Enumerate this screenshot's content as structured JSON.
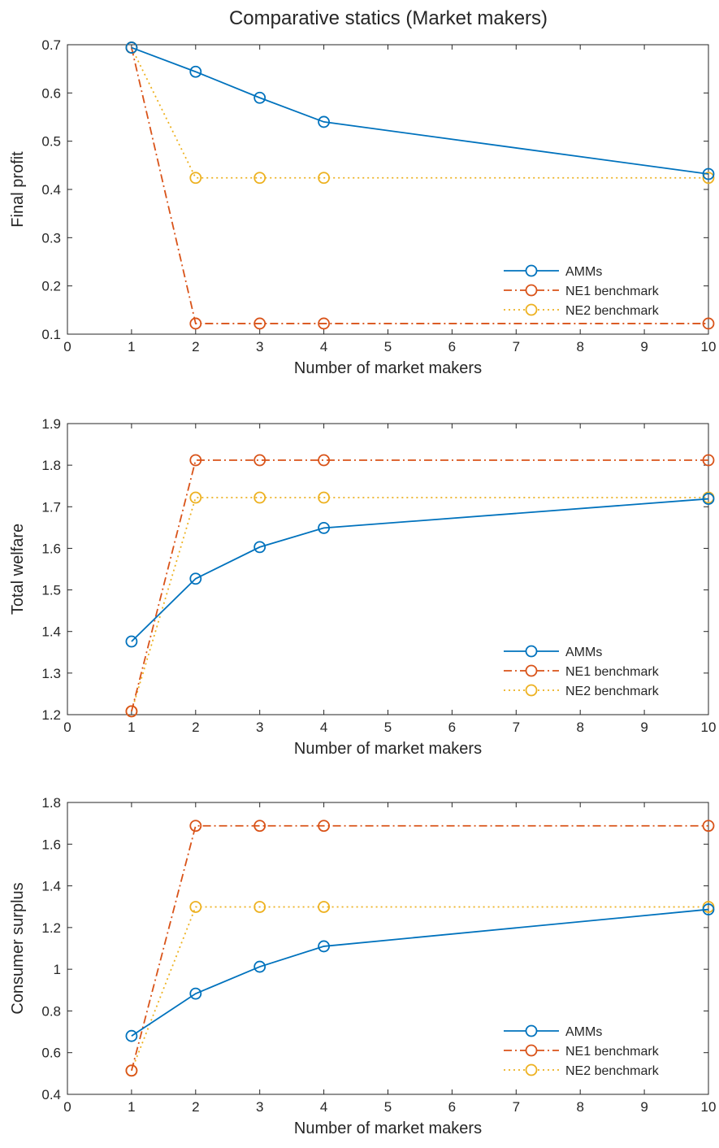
{
  "figure": {
    "title": "Comparative statics (Market makers)"
  },
  "colors": {
    "amm": "#0072BD",
    "ne1": "#D95319",
    "ne2": "#EDB120",
    "axis": "#262626"
  },
  "chart_data": [
    {
      "type": "line",
      "ylabel": "Final profit",
      "xlabel": "Number of market makers",
      "xlim": [
        0,
        10
      ],
      "ylim": [
        0.1,
        0.7
      ],
      "xticks": [
        0,
        1,
        2,
        3,
        4,
        5,
        6,
        7,
        8,
        9,
        10
      ],
      "yticks": [
        0.1,
        0.2,
        0.3,
        0.4,
        0.5,
        0.6,
        0.7
      ],
      "ytick_labels": [
        "0.1",
        "0.2",
        "0.3",
        "0.4",
        "0.5",
        "0.6",
        "0.7"
      ],
      "legend_position": "bottom-right",
      "x": [
        1,
        2,
        3,
        4,
        10
      ],
      "series": [
        {
          "name": "AMMs",
          "key": "amm",
          "style": "solid",
          "values": [
            0.694,
            0.644,
            0.59,
            0.54,
            0.432
          ]
        },
        {
          "name": "NE1 benchmark",
          "key": "ne1",
          "style": "dashdot",
          "values": [
            0.694,
            0.122,
            0.122,
            0.122,
            0.122
          ]
        },
        {
          "name": "NE2 benchmark",
          "key": "ne2",
          "style": "dotted",
          "values": [
            0.694,
            0.424,
            0.424,
            0.424,
            0.424
          ]
        }
      ]
    },
    {
      "type": "line",
      "ylabel": "Total welfare",
      "xlabel": "Number of market makers",
      "xlim": [
        0,
        10
      ],
      "ylim": [
        1.2,
        1.9
      ],
      "xticks": [
        0,
        1,
        2,
        3,
        4,
        5,
        6,
        7,
        8,
        9,
        10
      ],
      "yticks": [
        1.2,
        1.3,
        1.4,
        1.5,
        1.6,
        1.7,
        1.8,
        1.9
      ],
      "ytick_labels": [
        "1.2",
        "1.3",
        "1.4",
        "1.5",
        "1.6",
        "1.7",
        "1.8",
        "1.9"
      ],
      "legend_position": "bottom-right",
      "x": [
        1,
        2,
        3,
        4,
        10
      ],
      "series": [
        {
          "name": "AMMs",
          "key": "amm",
          "style": "solid",
          "values": [
            1.376,
            1.527,
            1.603,
            1.649,
            1.719
          ]
        },
        {
          "name": "NE1 benchmark",
          "key": "ne1",
          "style": "dashdot",
          "values": [
            1.208,
            1.812,
            1.812,
            1.812,
            1.812
          ]
        },
        {
          "name": "NE2 benchmark",
          "key": "ne2",
          "style": "dotted",
          "values": [
            1.208,
            1.722,
            1.722,
            1.722,
            1.722
          ]
        }
      ]
    },
    {
      "type": "line",
      "ylabel": "Consumer surplus",
      "xlabel": "Number of market makers",
      "xlim": [
        0,
        10
      ],
      "ylim": [
        0.4,
        1.8
      ],
      "xticks": [
        0,
        1,
        2,
        3,
        4,
        5,
        6,
        7,
        8,
        9,
        10
      ],
      "yticks": [
        0.4,
        0.6,
        0.8,
        1.0,
        1.2,
        1.4,
        1.6,
        1.8
      ],
      "ytick_labels": [
        "0.4",
        "0.6",
        "0.8",
        "1",
        "1.2",
        "1.4",
        "1.6",
        "1.8"
      ],
      "legend_position": "bottom-right",
      "x": [
        1,
        2,
        3,
        4,
        10
      ],
      "series": [
        {
          "name": "AMMs",
          "key": "amm",
          "style": "solid",
          "values": [
            0.68,
            0.883,
            1.012,
            1.11,
            1.287
          ]
        },
        {
          "name": "NE1 benchmark",
          "key": "ne1",
          "style": "dashdot",
          "values": [
            0.514,
            1.688,
            1.688,
            1.688,
            1.688
          ]
        },
        {
          "name": "NE2 benchmark",
          "key": "ne2",
          "style": "dotted",
          "values": [
            0.514,
            1.299,
            1.299,
            1.299,
            1.299
          ]
        }
      ]
    }
  ]
}
